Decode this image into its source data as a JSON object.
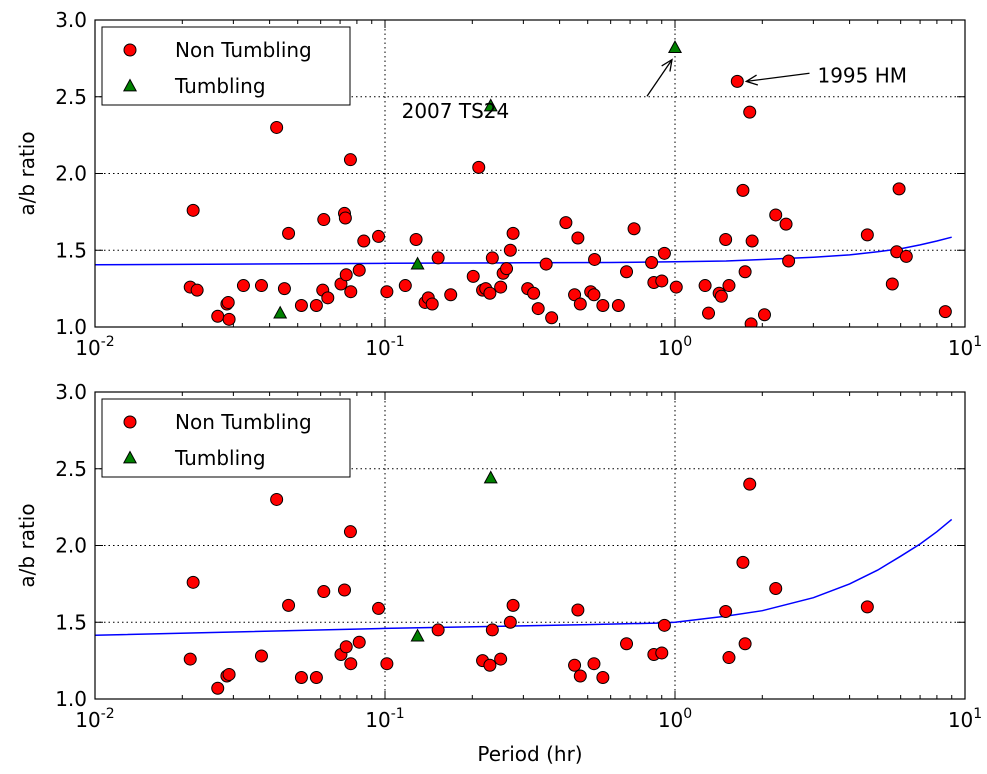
{
  "chart_data": [
    {
      "type": "scatter",
      "panel": "top",
      "xscale": "log",
      "xlim": [
        0.01,
        10
      ],
      "ylim": [
        1.0,
        3.0
      ],
      "grid": true,
      "legend_position": "top-left",
      "xlabel": "",
      "ylabel": "a/b ratio",
      "x_ticks": [
        {
          "base": "10",
          "exp": "-2"
        },
        {
          "base": "10",
          "exp": "-1"
        },
        {
          "base": "10",
          "exp": "0"
        },
        {
          "base": "10",
          "exp": "1"
        }
      ],
      "y_ticks": [
        "1.0",
        "1.5",
        "2.0",
        "2.5",
        "3.0"
      ],
      "series": [
        {
          "name": "Non Tumbling",
          "marker": "circle",
          "color": "#ff0000",
          "points": [
            [
              0.0213,
              1.26
            ],
            [
              0.0218,
              1.76
            ],
            [
              0.0225,
              1.24
            ],
            [
              0.0265,
              1.07
            ],
            [
              0.0285,
              1.15
            ],
            [
              0.029,
              1.05
            ],
            [
              0.0288,
              1.16
            ],
            [
              0.0325,
              1.27
            ],
            [
              0.0375,
              1.27
            ],
            [
              0.0423,
              2.3
            ],
            [
              0.045,
              1.25
            ],
            [
              0.0465,
              1.61
            ],
            [
              0.0515,
              1.14
            ],
            [
              0.058,
              1.14
            ],
            [
              0.061,
              1.24
            ],
            [
              0.0615,
              1.7
            ],
            [
              0.0635,
              1.19
            ],
            [
              0.0705,
              1.28
            ],
            [
              0.0725,
              1.74
            ],
            [
              0.073,
              1.71
            ],
            [
              0.0735,
              1.34
            ],
            [
              0.076,
              2.09
            ],
            [
              0.0762,
              1.23
            ],
            [
              0.0815,
              1.37
            ],
            [
              0.0845,
              1.56
            ],
            [
              0.095,
              1.59
            ],
            [
              0.1015,
              1.23
            ],
            [
              0.1175,
              1.27
            ],
            [
              0.128,
              1.57
            ],
            [
              0.1375,
              1.16
            ],
            [
              0.141,
              1.19
            ],
            [
              0.1455,
              1.15
            ],
            [
              0.1525,
              1.45
            ],
            [
              0.1685,
              1.21
            ],
            [
              0.2015,
              1.33
            ],
            [
              0.2105,
              2.04
            ],
            [
              0.217,
              1.24
            ],
            [
              0.2225,
              1.25
            ],
            [
              0.23,
              1.22
            ],
            [
              0.2345,
              1.45
            ],
            [
              0.2505,
              1.26
            ],
            [
              0.2555,
              1.35
            ],
            [
              0.2625,
              1.38
            ],
            [
              0.2705,
              1.5
            ],
            [
              0.2765,
              1.61
            ],
            [
              0.3105,
              1.25
            ],
            [
              0.3255,
              1.22
            ],
            [
              0.3375,
              1.12
            ],
            [
              0.3595,
              1.41
            ],
            [
              0.3755,
              1.06
            ],
            [
              0.4205,
              1.68
            ],
            [
              0.4505,
              1.21
            ],
            [
              0.4625,
              1.58
            ],
            [
              0.4715,
              1.15
            ],
            [
              0.512,
              1.23
            ],
            [
              0.5255,
              1.21
            ],
            [
              0.528,
              1.44
            ],
            [
              0.564,
              1.14
            ],
            [
              0.638,
              1.14
            ],
            [
              0.6805,
              1.36
            ],
            [
              0.7225,
              1.64
            ],
            [
              0.8305,
              1.42
            ],
            [
              0.8455,
              1.29
            ],
            [
              0.9005,
              1.3
            ],
            [
              0.9195,
              1.48
            ],
            [
              1.01,
              1.26
            ],
            [
              1.27,
              1.27
            ],
            [
              1.305,
              1.09
            ],
            [
              1.42,
              1.22
            ],
            [
              1.445,
              1.2
            ],
            [
              1.495,
              1.57
            ],
            [
              1.535,
              1.27
            ],
            [
              1.64,
              2.6
            ],
            [
              1.715,
              1.89
            ],
            [
              1.745,
              1.36
            ],
            [
              1.81,
              2.4
            ],
            [
              1.83,
              1.02
            ],
            [
              1.845,
              1.56
            ],
            [
              2.035,
              1.08
            ],
            [
              2.225,
              1.73
            ],
            [
              2.415,
              1.67
            ],
            [
              2.465,
              1.43
            ],
            [
              4.605,
              1.6
            ],
            [
              5.615,
              1.28
            ],
            [
              5.815,
              1.49
            ],
            [
              5.925,
              1.9
            ],
            [
              6.275,
              1.46
            ],
            [
              8.555,
              1.1
            ]
          ]
        },
        {
          "name": "Tumbling",
          "marker": "triangle",
          "color": "#008000",
          "points": [
            [
              0.0435,
              1.09
            ],
            [
              0.1295,
              1.41
            ],
            [
              0.2315,
              2.44
            ],
            [
              1.0,
              2.82
            ]
          ]
        },
        {
          "name": "",
          "marker": "line",
          "color": "#0000ff",
          "points": [
            [
              0.01,
              1.405
            ],
            [
              0.03,
              1.41
            ],
            [
              0.1,
              1.415
            ],
            [
              0.3,
              1.418
            ],
            [
              0.6,
              1.42
            ],
            [
              1.0,
              1.425
            ],
            [
              1.5,
              1.43
            ],
            [
              2.0,
              1.44
            ],
            [
              3.0,
              1.455
            ],
            [
              4.0,
              1.47
            ],
            [
              5.0,
              1.49
            ],
            [
              6.0,
              1.51
            ],
            [
              7.0,
              1.535
            ],
            [
              8.0,
              1.56
            ],
            [
              9.0,
              1.585
            ]
          ]
        }
      ],
      "annotations": [
        {
          "text": "2007 TS24",
          "x": 1.0,
          "y": 2.82,
          "text_x": 0.4,
          "text_y": 2.36
        },
        {
          "text": "1995 HM",
          "x": 1.64,
          "y": 2.6,
          "text_x": 3.1,
          "text_y": 2.64
        }
      ]
    },
    {
      "type": "scatter",
      "panel": "bottom",
      "xscale": "log",
      "xlim": [
        0.01,
        10
      ],
      "ylim": [
        1.0,
        3.0
      ],
      "grid": true,
      "legend_position": "top-left",
      "xlabel": "Period (hr)",
      "ylabel": "a/b ratio",
      "x_ticks": [
        {
          "base": "10",
          "exp": "-2"
        },
        {
          "base": "10",
          "exp": "-1"
        },
        {
          "base": "10",
          "exp": "0"
        },
        {
          "base": "10",
          "exp": "1"
        }
      ],
      "y_ticks": [
        "1.0",
        "1.5",
        "2.0",
        "2.5",
        "3.0"
      ],
      "series": [
        {
          "name": "Non Tumbling",
          "marker": "circle",
          "color": "#ff0000",
          "points": [
            [
              0.0213,
              1.26
            ],
            [
              0.0218,
              1.76
            ],
            [
              0.0265,
              1.07
            ],
            [
              0.0285,
              1.15
            ],
            [
              0.029,
              1.16
            ],
            [
              0.0375,
              1.28
            ],
            [
              0.0423,
              2.3
            ],
            [
              0.0465,
              1.61
            ],
            [
              0.0515,
              1.14
            ],
            [
              0.058,
              1.14
            ],
            [
              0.0615,
              1.7
            ],
            [
              0.0705,
              1.29
            ],
            [
              0.0725,
              1.71
            ],
            [
              0.0735,
              1.34
            ],
            [
              0.076,
              2.09
            ],
            [
              0.0762,
              1.23
            ],
            [
              0.0815,
              1.37
            ],
            [
              0.095,
              1.59
            ],
            [
              0.1015,
              1.23
            ],
            [
              0.1525,
              1.45
            ],
            [
              0.217,
              1.25
            ],
            [
              0.23,
              1.22
            ],
            [
              0.2345,
              1.45
            ],
            [
              0.2505,
              1.26
            ],
            [
              0.2705,
              1.5
            ],
            [
              0.2765,
              1.61
            ],
            [
              0.4505,
              1.22
            ],
            [
              0.4625,
              1.58
            ],
            [
              0.4715,
              1.15
            ],
            [
              0.5255,
              1.23
            ],
            [
              0.564,
              1.14
            ],
            [
              0.6805,
              1.36
            ],
            [
              0.8455,
              1.29
            ],
            [
              0.9005,
              1.3
            ],
            [
              0.9195,
              1.48
            ],
            [
              1.495,
              1.57
            ],
            [
              1.535,
              1.27
            ],
            [
              1.715,
              1.89
            ],
            [
              1.745,
              1.36
            ],
            [
              1.81,
              2.4
            ],
            [
              2.225,
              1.72
            ],
            [
              4.605,
              1.6
            ]
          ]
        },
        {
          "name": "Tumbling",
          "marker": "triangle",
          "color": "#008000",
          "points": [
            [
              0.1295,
              1.41
            ],
            [
              0.2315,
              2.44
            ]
          ]
        },
        {
          "name": "",
          "marker": "line",
          "color": "#0000ff",
          "points": [
            [
              0.01,
              1.415
            ],
            [
              0.1,
              1.46
            ],
            [
              0.5,
              1.485
            ],
            [
              0.9,
              1.495
            ],
            [
              1.0,
              1.5
            ],
            [
              1.5,
              1.54
            ],
            [
              2.0,
              1.575
            ],
            [
              3.0,
              1.66
            ],
            [
              4.0,
              1.75
            ],
            [
              5.0,
              1.84
            ],
            [
              6.0,
              1.93
            ],
            [
              7.0,
              2.01
            ],
            [
              8.0,
              2.09
            ],
            [
              9.0,
              2.17
            ]
          ]
        }
      ],
      "annotations": []
    }
  ]
}
